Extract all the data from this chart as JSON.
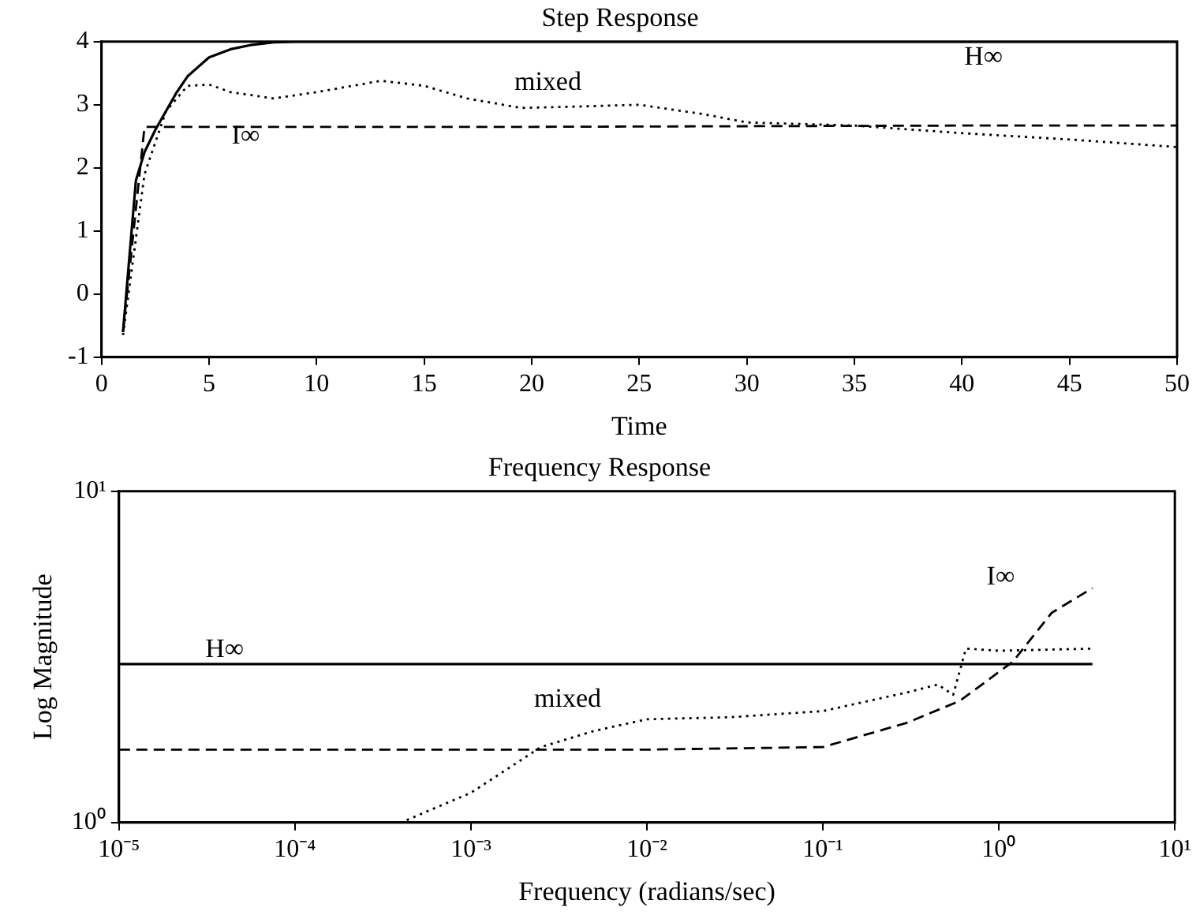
{
  "chart_data": [
    {
      "type": "line",
      "title": "Step Response",
      "xlabel": "Time",
      "xlim": [
        0,
        50
      ],
      "xticks": [
        0,
        5,
        10,
        15,
        20,
        25,
        30,
        35,
        40,
        45,
        50
      ],
      "ylim": [
        -1,
        4
      ],
      "yticks": [
        -1,
        0,
        1,
        2,
        3,
        4
      ],
      "grid": false,
      "marker": "none",
      "series": [
        {
          "name": "H∞",
          "color": "#000000",
          "line_style": "solid",
          "x": [
            1,
            1.6,
            2,
            2.5,
            3,
            3.5,
            4,
            5,
            6,
            7,
            8,
            9,
            10,
            20,
            30,
            40,
            50
          ],
          "values": [
            -0.6,
            1.8,
            2.25,
            2.6,
            2.9,
            3.2,
            3.45,
            3.75,
            3.88,
            3.95,
            3.99,
            4,
            4,
            4,
            4,
            4,
            4
          ]
        },
        {
          "name": "I∞",
          "color": "#000000",
          "line_style": "dashed",
          "x": [
            1,
            2,
            3,
            5,
            10,
            20,
            30,
            40,
            50
          ],
          "values": [
            -0.6,
            2.65,
            2.65,
            2.65,
            2.65,
            2.65,
            2.66,
            2.67,
            2.67
          ]
        },
        {
          "name": "mixed",
          "color": "#000000",
          "line_style": "dotted",
          "x": [
            1,
            2,
            3,
            4,
            5,
            6,
            8,
            10,
            13,
            15,
            17,
            19.5,
            22,
            25,
            28,
            30,
            35,
            40,
            45,
            50
          ],
          "values": [
            -0.65,
            1.9,
            2.9,
            3.3,
            3.32,
            3.2,
            3.1,
            3.2,
            3.38,
            3.3,
            3.1,
            2.95,
            2.97,
            3.0,
            2.85,
            2.72,
            2.67,
            2.55,
            2.45,
            2.33
          ]
        }
      ]
    },
    {
      "type": "line",
      "title": "Frequency Response",
      "xlabel": "Frequency (radians/sec)",
      "ylabel": "Log Magnitude",
      "log": "xy",
      "xlim": [
        1e-05,
        10
      ],
      "xticks": [
        {
          "value": 1e-05,
          "label": "10⁻⁵"
        },
        {
          "value": 0.0001,
          "label": "10⁻⁴"
        },
        {
          "value": 0.001,
          "label": "10⁻³"
        },
        {
          "value": 0.01,
          "label": "10⁻²"
        },
        {
          "value": 0.1,
          "label": "10⁻¹"
        },
        {
          "value": 1,
          "label": "10⁰"
        },
        {
          "value": 10,
          "label": "10¹"
        }
      ],
      "ylim": [
        1,
        10
      ],
      "yticks": [
        {
          "value": 1,
          "label": "10⁰"
        },
        {
          "value": 10,
          "label": "10¹"
        }
      ],
      "grid": false,
      "marker": "none",
      "series": [
        {
          "name": "H∞",
          "color": "#000000",
          "line_style": "solid",
          "x": [
            1e-05,
            3.4
          ],
          "values": [
            3.01,
            3.01
          ]
        },
        {
          "name": "I∞",
          "color": "#000000",
          "line_style": "dashed",
          "x": [
            1e-05,
            0.01,
            0.1,
            0.3,
            0.6,
            1.2,
            2,
            3.4
          ],
          "values": [
            1.66,
            1.66,
            1.69,
            2.0,
            2.33,
            3.06,
            4.3,
            5.1
          ]
        },
        {
          "name": "mixed",
          "color": "#000000",
          "line_style": "dotted",
          "x": [
            0.00013,
            0.0004,
            0.001,
            0.0025,
            0.005,
            0.01,
            0.03,
            0.1,
            0.3,
            0.45,
            0.55,
            0.65,
            1,
            3.4
          ],
          "values": [
            1.0,
            1.0,
            1.23,
            1.69,
            1.89,
            2.05,
            2.08,
            2.17,
            2.47,
            2.61,
            2.43,
            3.35,
            3.3,
            3.35
          ]
        }
      ]
    }
  ]
}
